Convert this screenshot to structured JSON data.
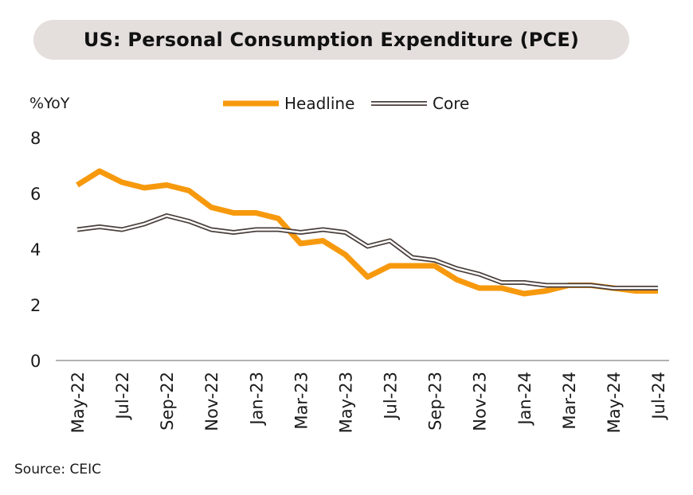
{
  "header": {
    "title": "US: Personal Consumption Expenditure (PCE)"
  },
  "footer": {
    "source": "Source: CEIC"
  },
  "chart_data": {
    "type": "line",
    "title": "US: Personal Consumption Expenditure (PCE)",
    "ylabel": "%YoY",
    "xlabel": "",
    "ylim": [
      0,
      8
    ],
    "yticks": [
      0,
      2,
      4,
      6,
      8
    ],
    "grid": false,
    "legend_position": "top",
    "x": [
      "May-22",
      "Jun-22",
      "Jul-22",
      "Aug-22",
      "Sep-22",
      "Oct-22",
      "Nov-22",
      "Dec-22",
      "Jan-23",
      "Feb-23",
      "Mar-23",
      "Apr-23",
      "May-23",
      "Jun-23",
      "Jul-23",
      "Aug-23",
      "Sep-23",
      "Oct-23",
      "Nov-23",
      "Dec-23",
      "Jan-24",
      "Feb-24",
      "Mar-24",
      "Apr-24",
      "May-24",
      "Jun-24",
      "Jul-24"
    ],
    "xtick_labels": [
      "May-22",
      "Jul-22",
      "Sep-22",
      "Nov-22",
      "Jan-23",
      "Mar-23",
      "May-23",
      "Jul-23",
      "Sep-23",
      "Nov-23",
      "Jan-24",
      "Mar-24",
      "May-24",
      "Jul-24"
    ],
    "series": [
      {
        "name": "Headline",
        "color": "#f7990d",
        "style": "thick",
        "values": [
          6.3,
          6.8,
          6.4,
          6.2,
          6.3,
          6.1,
          5.5,
          5.3,
          5.3,
          5.1,
          4.2,
          4.3,
          3.8,
          3.0,
          3.4,
          3.4,
          3.4,
          2.9,
          2.6,
          2.6,
          2.4,
          2.5,
          2.7,
          2.7,
          2.6,
          2.5,
          2.5
        ]
      },
      {
        "name": "Core",
        "color": "#4a3f3c",
        "style": "double",
        "values": [
          4.7,
          4.8,
          4.7,
          4.9,
          5.2,
          5.0,
          4.7,
          4.6,
          4.7,
          4.7,
          4.6,
          4.7,
          4.6,
          4.1,
          4.3,
          3.7,
          3.6,
          3.3,
          3.1,
          2.8,
          2.8,
          2.7,
          2.7,
          2.7,
          2.6,
          2.6,
          2.6
        ]
      }
    ]
  }
}
